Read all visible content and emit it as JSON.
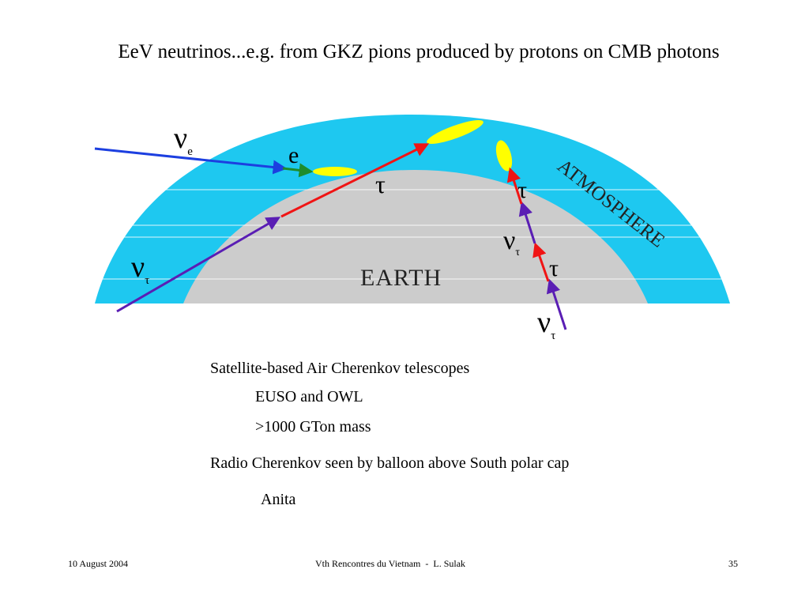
{
  "slide": {
    "title": "EeV neutrinos...e.g. from GKZ pions produced by protons on CMB photons"
  },
  "diagram": {
    "labels": {
      "nu": "ν",
      "sub_e": "e",
      "sub_tau": "τ",
      "electron": "e",
      "tau": "τ",
      "earth": "EARTH",
      "atmosphere": "ATMOSPHERE"
    },
    "colors": {
      "atmosphere": "#1ec8f0",
      "earth": "#cccccc",
      "nu_e_track": "#1c3fe0",
      "electron_track": "#1e8c2c",
      "nu_tau_track": "#5a1eb4",
      "tau_track": "#f01414",
      "shower": "#ffff00"
    }
  },
  "bullets": {
    "line1": "Satellite-based Air Cherenkov telescopes",
    "line2": "EUSO and OWL",
    "line3": ">1000 GTon mass",
    "line4": "Radio Cherenkov seen by balloon above South polar cap",
    "line5": "Anita"
  },
  "footer": {
    "date": "10 August 2004",
    "center": "Vth Rencontres du Vietnam  -  L. Sulak",
    "page": "35"
  }
}
